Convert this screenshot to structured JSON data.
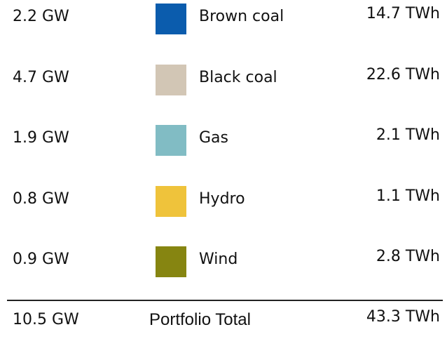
{
  "rows": [
    {
      "capacity": "2.2 GW",
      "name": "Brown coal",
      "color": "#0b5cad",
      "energy": "14.7 TWh"
    },
    {
      "capacity": "4.7 GW",
      "name": "Black coal",
      "color": "#d2c6b5",
      "energy": "22.6 TWh"
    },
    {
      "capacity": "1.9 GW",
      "name": "Gas",
      "color": "#81bcc4",
      "energy": "2.1 TWh"
    },
    {
      "capacity": "0.8 GW",
      "name": "Hydro",
      "color": "#efc33b",
      "energy": "1.1 TWh"
    },
    {
      "capacity": "0.9 GW",
      "name": "Wind",
      "color": "#868511",
      "energy": "2.8 TWh"
    }
  ],
  "total": {
    "capacity": "10.5 GW",
    "name": "Portfolio Total",
    "energy": "43.3 TWh"
  }
}
